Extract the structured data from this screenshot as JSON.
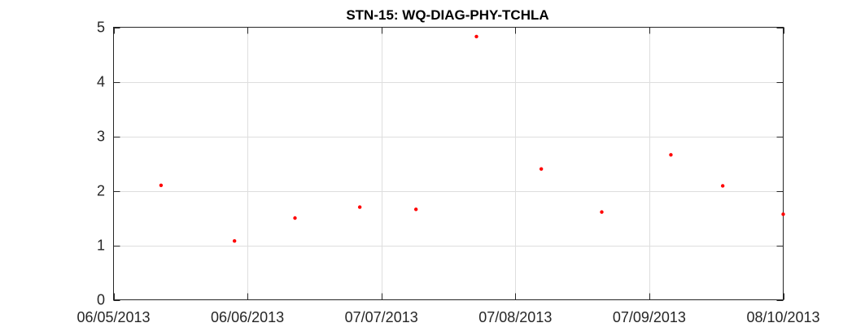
{
  "chart_data": {
    "type": "scatter",
    "title": "STN-15: WQ-DIAG-PHY-TCHLA",
    "xlabel": "",
    "ylabel": "",
    "x_type": "date",
    "xlim": [
      "2013-05-06",
      "2013-10-08"
    ],
    "ylim": [
      0,
      5
    ],
    "grid": true,
    "x_ticks": [
      {
        "date": "2013-05-06",
        "label": "06/05/2013"
      },
      {
        "date": "2013-06-06",
        "label": "06/06/2013"
      },
      {
        "date": "2013-07-07",
        "label": "07/07/2013"
      },
      {
        "date": "2013-08-07",
        "label": "07/08/2013"
      },
      {
        "date": "2013-09-07",
        "label": "07/09/2013"
      },
      {
        "date": "2013-10-08",
        "label": "08/10/2013"
      }
    ],
    "y_ticks": [
      0,
      1,
      2,
      3,
      4,
      5
    ],
    "series": [
      {
        "name": "TCHLA",
        "color": "#ff0000",
        "marker": "dot",
        "points": [
          {
            "x": "2013-05-17",
            "y": 2.1
          },
          {
            "x": "2013-06-03",
            "y": 1.08
          },
          {
            "x": "2013-06-17",
            "y": 1.5
          },
          {
            "x": "2013-07-02",
            "y": 1.7
          },
          {
            "x": "2013-07-15",
            "y": 1.66
          },
          {
            "x": "2013-07-29",
            "y": 4.83
          },
          {
            "x": "2013-08-13",
            "y": 2.4
          },
          {
            "x": "2013-08-27",
            "y": 1.61
          },
          {
            "x": "2013-09-12",
            "y": 2.66
          },
          {
            "x": "2013-09-24",
            "y": 2.09
          },
          {
            "x": "2013-10-08",
            "y": 1.57
          }
        ]
      }
    ]
  }
}
